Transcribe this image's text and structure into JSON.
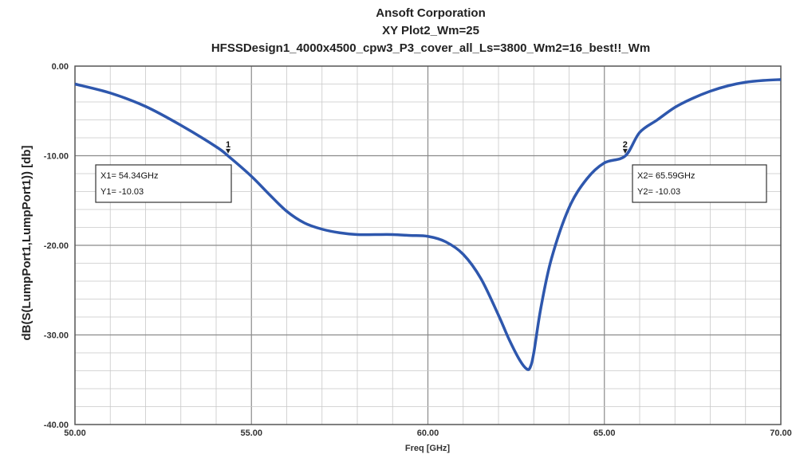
{
  "chart_data": {
    "type": "line",
    "title": "Ansoft Corporation",
    "subtitle": "XY Plot2_Wm=25",
    "subtitle2": "HFSSDesign1_4000x4500_cpw3_P3_cover_all_Ls=3800_Wm2=16_best!!_Wm",
    "xlabel": "Freq [GHz]",
    "ylabel": "dB(S(LumpPort1,LumpPort1)) [db]",
    "xlim": [
      50,
      70
    ],
    "ylim": [
      -40,
      0
    ],
    "grid": true,
    "x_tick_labels": [
      "50.00",
      "55.00",
      "60.00",
      "65.00",
      "70.00"
    ],
    "y_tick_labels": [
      "0.00",
      "-10.00",
      "-20.00",
      "-30.00",
      "-40.00"
    ],
    "series": [
      {
        "color": "#2e57ad",
        "x": [
          50.0,
          51.0,
          52.0,
          53.0,
          54.0,
          54.34,
          55.0,
          55.5,
          56.0,
          56.5,
          57.0,
          57.5,
          58.0,
          58.5,
          59.0,
          59.5,
          60.0,
          60.5,
          61.0,
          61.5,
          62.0,
          62.3,
          62.6,
          62.8,
          62.9,
          63.0,
          63.2,
          63.5,
          64.0,
          64.5,
          65.0,
          65.59,
          66.0,
          66.5,
          67.0,
          67.5,
          68.0,
          68.5,
          69.0,
          69.5,
          70.0
        ],
        "y": [
          -2.0,
          -3.0,
          -4.5,
          -6.6,
          -9.0,
          -10.03,
          -12.3,
          -14.3,
          -16.2,
          -17.5,
          -18.2,
          -18.6,
          -18.8,
          -18.8,
          -18.8,
          -18.9,
          -19.0,
          -19.6,
          -21.0,
          -23.7,
          -27.8,
          -30.5,
          -32.8,
          -33.8,
          -33.6,
          -32.0,
          -27.0,
          -21.5,
          -15.8,
          -12.6,
          -10.8,
          -10.03,
          -7.4,
          -6.0,
          -4.6,
          -3.6,
          -2.8,
          -2.2,
          -1.8,
          -1.6,
          -1.5
        ]
      }
    ],
    "markers": [
      {
        "id": "1",
        "x": 54.34,
        "y": -10.03,
        "line1": "X1= 54.34GHz",
        "line2": "Y1= -10.03"
      },
      {
        "id": "2",
        "x": 65.59,
        "y": -10.03,
        "line1": "X2= 65.59GHz",
        "line2": "Y2= -10.03"
      }
    ]
  }
}
